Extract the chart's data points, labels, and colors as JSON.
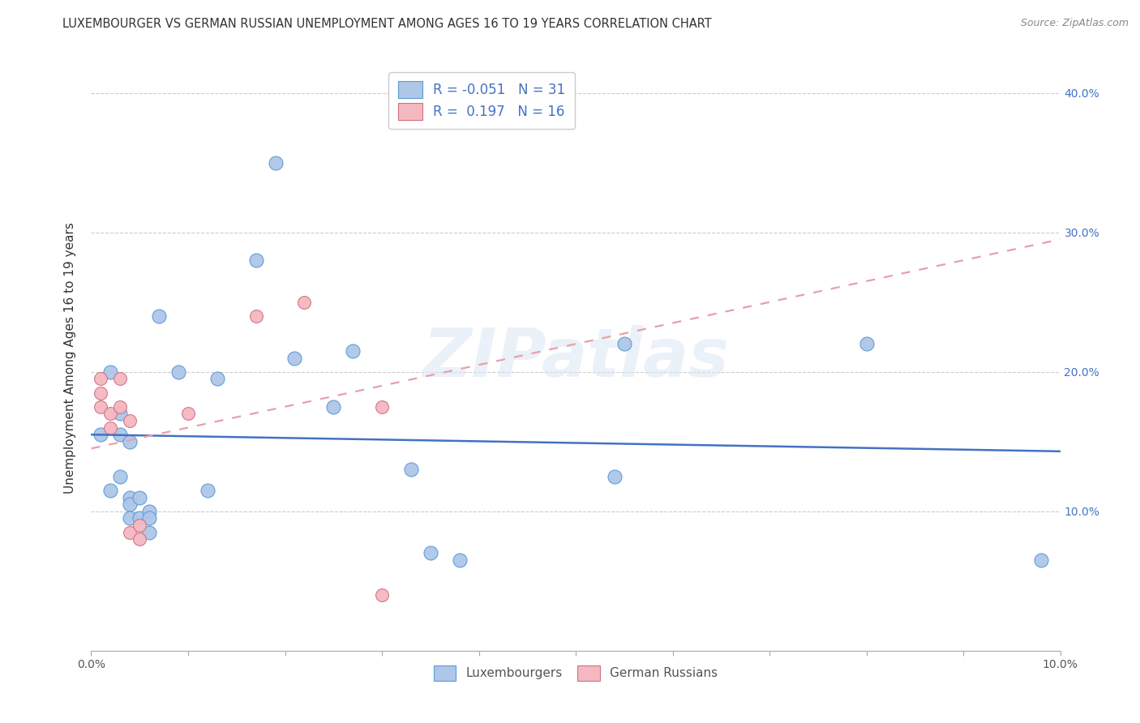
{
  "title": "LUXEMBOURGER VS GERMAN RUSSIAN UNEMPLOYMENT AMONG AGES 16 TO 19 YEARS CORRELATION CHART",
  "source": "Source: ZipAtlas.com",
  "ylabel": "Unemployment Among Ages 16 to 19 years",
  "xlim": [
    0.0,
    0.1
  ],
  "ylim": [
    0.0,
    0.42
  ],
  "yticks": [
    0.0,
    0.1,
    0.2,
    0.3,
    0.4
  ],
  "xticks": [
    0.0,
    0.01,
    0.02,
    0.03,
    0.04,
    0.05,
    0.06,
    0.07,
    0.08,
    0.09,
    0.1
  ],
  "xtick_labels_visible": {
    "0.0": "0.0%",
    "0.1": "10.0%"
  },
  "ytick_labels_right": [
    "",
    "10.0%",
    "20.0%",
    "30.0%",
    "40.0%"
  ],
  "blue_color": "#aec6e8",
  "blue_edge": "#5b9bd5",
  "pink_color": "#f4b8c1",
  "pink_edge": "#d47080",
  "blue_line_color": "#4472c4",
  "pink_line_color": "#e8a0a8",
  "legend_R_blue": "R = -0.051",
  "legend_N_blue": "N = 31",
  "legend_R_pink": "R =  0.197",
  "legend_N_pink": "N = 16",
  "watermark": "ZIPatlas",
  "lux_x": [
    0.001,
    0.002,
    0.002,
    0.003,
    0.003,
    0.003,
    0.004,
    0.004,
    0.004,
    0.004,
    0.005,
    0.005,
    0.006,
    0.006,
    0.006,
    0.007,
    0.009,
    0.012,
    0.013,
    0.017,
    0.019,
    0.021,
    0.025,
    0.027,
    0.033,
    0.035,
    0.038,
    0.054,
    0.055,
    0.08,
    0.098
  ],
  "lux_y": [
    0.155,
    0.115,
    0.2,
    0.17,
    0.155,
    0.125,
    0.15,
    0.11,
    0.105,
    0.095,
    0.11,
    0.095,
    0.1,
    0.095,
    0.085,
    0.24,
    0.2,
    0.115,
    0.195,
    0.28,
    0.35,
    0.21,
    0.175,
    0.215,
    0.13,
    0.07,
    0.065,
    0.125,
    0.22,
    0.22,
    0.065
  ],
  "ger_x": [
    0.001,
    0.001,
    0.001,
    0.002,
    0.002,
    0.003,
    0.003,
    0.004,
    0.004,
    0.005,
    0.005,
    0.01,
    0.017,
    0.022,
    0.03,
    0.03
  ],
  "ger_y": [
    0.195,
    0.185,
    0.175,
    0.17,
    0.16,
    0.195,
    0.175,
    0.165,
    0.085,
    0.09,
    0.08,
    0.17,
    0.24,
    0.25,
    0.175,
    0.04
  ],
  "lux_trend_x": [
    0.0,
    0.1
  ],
  "lux_trend_y": [
    0.155,
    0.143
  ],
  "ger_trend_x": [
    0.0,
    0.1
  ],
  "ger_trend_y": [
    0.145,
    0.295
  ]
}
